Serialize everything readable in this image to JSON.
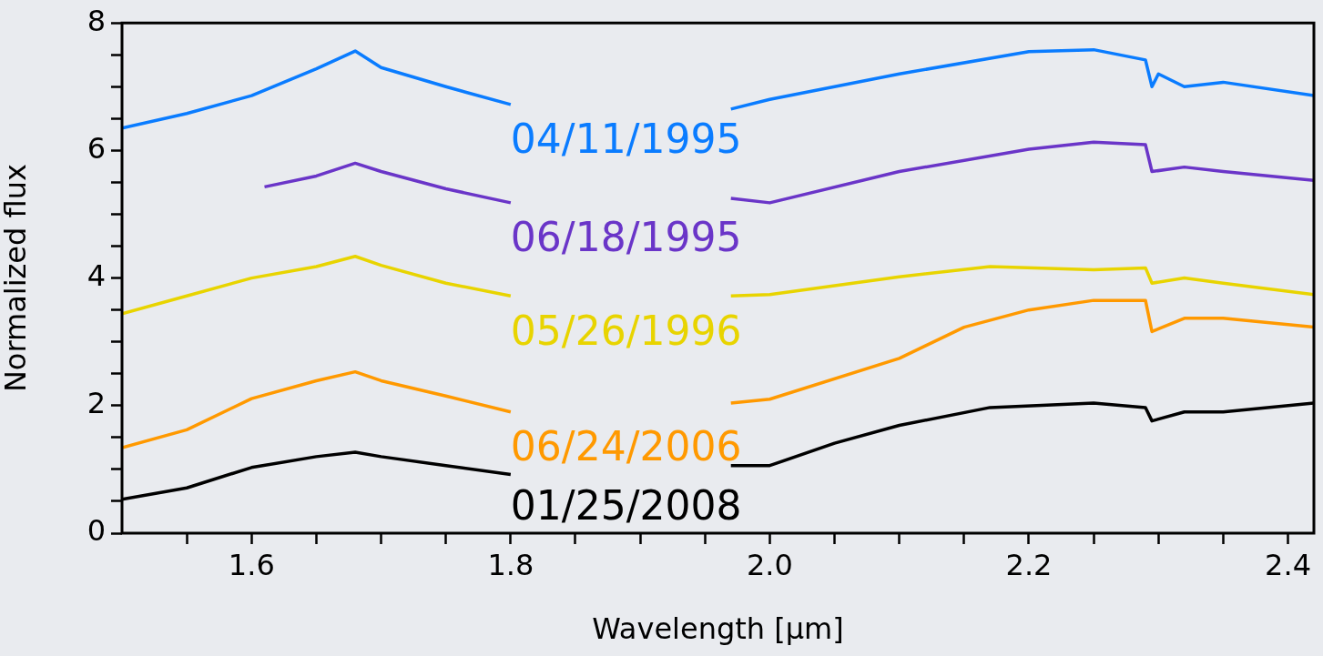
{
  "chart_data": {
    "type": "line",
    "xlabel": "Wavelength [μm]",
    "ylabel": "Normalized flux",
    "xlim": [
      1.5,
      2.42
    ],
    "ylim": [
      0,
      8
    ],
    "xticks": [
      {
        "value": 1.55,
        "label": null
      },
      1.6,
      {
        "value": 1.65,
        "label": null
      },
      {
        "value": 1.7,
        "label": null
      },
      {
        "value": 1.75,
        "label": null
      },
      1.8,
      {
        "value": 1.85,
        "label": null
      },
      {
        "value": 1.9,
        "label": null
      },
      {
        "value": 1.95,
        "label": null
      },
      {
        "value": 2.0,
        "label": "2.0"
      },
      {
        "value": 2.05,
        "label": null
      },
      {
        "value": 2.1,
        "label": null
      },
      {
        "value": 2.15,
        "label": null
      },
      2.2,
      {
        "value": 2.25,
        "label": null
      },
      {
        "value": 2.3,
        "label": null
      },
      {
        "value": 2.35,
        "label": null
      },
      2.4
    ],
    "yticks": [
      0,
      {
        "value": 0.5,
        "label": null
      },
      {
        "value": 1,
        "label": null
      },
      {
        "value": 1.5,
        "label": null
      },
      2,
      {
        "value": 2.5,
        "label": null
      },
      {
        "value": 3,
        "label": null
      },
      {
        "value": 3.5,
        "label": null
      },
      4,
      {
        "value": 4.5,
        "label": null
      },
      {
        "value": 5,
        "label": null
      },
      {
        "value": 5.5,
        "label": null
      },
      6,
      {
        "value": 6.5,
        "label": null
      },
      {
        "value": 7,
        "label": null
      },
      {
        "value": 7.5,
        "label": null
      },
      8
    ],
    "grid": false,
    "legend": false,
    "marker": "none",
    "line_style": "solid",
    "series": [
      {
        "name": "04/11/1995",
        "color": "#0a7cff",
        "x": [
          1.5,
          1.55,
          1.6,
          1.65,
          1.68,
          1.7,
          1.75,
          1.8,
          1.9,
          1.97,
          2.0,
          2.1,
          2.2,
          2.25,
          2.29,
          2.295,
          2.3,
          2.32,
          2.35,
          2.42
        ],
        "values": [
          6.35,
          6.58,
          6.86,
          7.28,
          7.56,
          7.3,
          7.0,
          6.72,
          null,
          6.65,
          6.8,
          7.2,
          7.55,
          7.58,
          7.42,
          7.0,
          7.2,
          7.0,
          7.07,
          6.86
        ]
      },
      {
        "name": "06/18/1995",
        "color": "#6a35c8",
        "x": [
          1.61,
          1.65,
          1.68,
          1.7,
          1.75,
          1.8,
          1.9,
          1.97,
          2.0,
          2.1,
          2.2,
          2.25,
          2.29,
          2.295,
          2.32,
          2.35,
          2.42
        ],
        "values": [
          5.43,
          5.6,
          5.8,
          5.67,
          5.4,
          5.18,
          null,
          5.25,
          5.18,
          5.67,
          6.02,
          6.13,
          6.09,
          5.67,
          5.74,
          5.67,
          5.53
        ]
      },
      {
        "name": "05/26/1996",
        "color": "#e8d400",
        "x": [
          1.5,
          1.55,
          1.6,
          1.65,
          1.68,
          1.7,
          1.75,
          1.8,
          1.9,
          1.97,
          2.0,
          2.1,
          2.17,
          2.25,
          2.29,
          2.295,
          2.32,
          2.35,
          2.42
        ],
        "values": [
          3.44,
          3.72,
          4.0,
          4.18,
          4.34,
          4.2,
          3.92,
          3.72,
          null,
          3.72,
          3.74,
          4.02,
          4.18,
          4.13,
          4.16,
          3.92,
          4.0,
          3.92,
          3.74
        ]
      },
      {
        "name": "06/24/2006",
        "color": "#ff9900",
        "x": [
          1.5,
          1.55,
          1.6,
          1.65,
          1.68,
          1.7,
          1.75,
          1.8,
          1.9,
          1.97,
          2.0,
          2.1,
          2.15,
          2.2,
          2.25,
          2.29,
          2.295,
          2.32,
          2.35,
          2.42
        ],
        "values": [
          1.34,
          1.62,
          2.11,
          2.39,
          2.53,
          2.39,
          2.15,
          1.9,
          null,
          2.04,
          2.1,
          2.74,
          3.23,
          3.5,
          3.65,
          3.65,
          3.16,
          3.37,
          3.37,
          3.23
        ]
      },
      {
        "name": "01/25/2008",
        "color": "#000000",
        "x": [
          1.5,
          1.55,
          1.6,
          1.65,
          1.68,
          1.7,
          1.75,
          1.8,
          1.9,
          1.97,
          2.0,
          2.05,
          2.1,
          2.17,
          2.25,
          2.29,
          2.295,
          2.32,
          2.35,
          2.42
        ],
        "values": [
          0.53,
          0.71,
          1.03,
          1.2,
          1.27,
          1.2,
          1.06,
          0.92,
          null,
          1.06,
          1.06,
          1.41,
          1.69,
          1.97,
          2.04,
          1.97,
          1.76,
          1.9,
          1.9,
          2.04
        ]
      }
    ]
  }
}
